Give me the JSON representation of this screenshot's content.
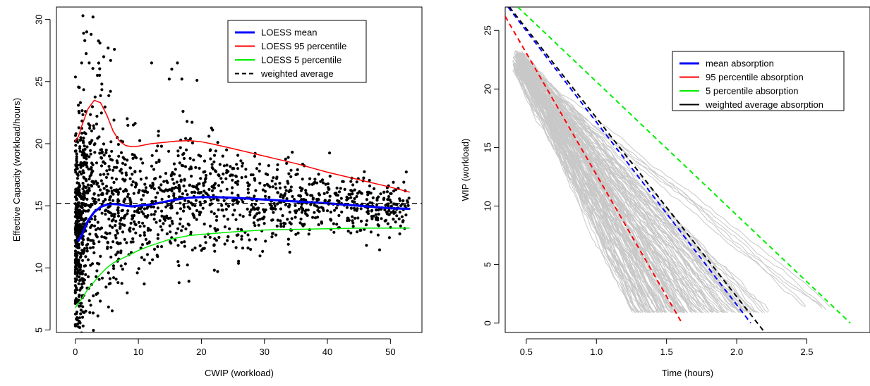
{
  "chart_data": [
    {
      "type": "scatter",
      "xlabel": "CWIP (workload)",
      "ylabel": "Effective Capacity (workload/hours)",
      "xlim": [
        -3,
        55
      ],
      "ylim": [
        4.8,
        31
      ],
      "xticks": [
        0,
        10,
        20,
        30,
        40,
        50
      ],
      "yticks": [
        5,
        10,
        15,
        20,
        25,
        30
      ],
      "grid": false,
      "legend_position": "top-right",
      "series": [
        {
          "name": "LOESS mean",
          "kind": "line",
          "color": "#0000ff",
          "points": [
            [
              0.5,
              12.2
            ],
            [
              1,
              12.6
            ],
            [
              2,
              13.8
            ],
            [
              3,
              14.5
            ],
            [
              4,
              14.9
            ],
            [
              5,
              15.1
            ],
            [
              6,
              15.15
            ],
            [
              7,
              15.1
            ],
            [
              8,
              15.0
            ],
            [
              9,
              14.95
            ],
            [
              10,
              15.0
            ],
            [
              12,
              15.1
            ],
            [
              14,
              15.3
            ],
            [
              16,
              15.5
            ],
            [
              18,
              15.65
            ],
            [
              20,
              15.7
            ],
            [
              22,
              15.7
            ],
            [
              25,
              15.65
            ],
            [
              30,
              15.5
            ],
            [
              35,
              15.35
            ],
            [
              40,
              15.2
            ],
            [
              45,
              15.0
            ],
            [
              50,
              14.8
            ],
            [
              53,
              14.75
            ]
          ]
        },
        {
          "name": "LOESS 95 percentile",
          "kind": "line",
          "color": "#ff0000",
          "points": [
            [
              0,
              20.2
            ],
            [
              0.5,
              20.6
            ],
            [
              1,
              21.4
            ],
            [
              2,
              22.8
            ],
            [
              3,
              23.5
            ],
            [
              4,
              23.3
            ],
            [
              5,
              22.3
            ],
            [
              6,
              21.0
            ],
            [
              7,
              20.2
            ],
            [
              8,
              19.85
            ],
            [
              9,
              19.75
            ],
            [
              10,
              19.8
            ],
            [
              12,
              20.0
            ],
            [
              14,
              20.1
            ],
            [
              16,
              20.2
            ],
            [
              18,
              20.25
            ],
            [
              20,
              20.15
            ],
            [
              22,
              19.95
            ],
            [
              25,
              19.6
            ],
            [
              30,
              19.0
            ],
            [
              35,
              18.4
            ],
            [
              40,
              17.7
            ],
            [
              45,
              17.1
            ],
            [
              50,
              16.5
            ],
            [
              53,
              16.1
            ]
          ]
        },
        {
          "name": "LOESS 5 percentile",
          "kind": "line",
          "color": "#00ee00",
          "points": [
            [
              0,
              6.8
            ],
            [
              1,
              7.5
            ],
            [
              2,
              8.3
            ],
            [
              3,
              8.9
            ],
            [
              4,
              9.5
            ],
            [
              5,
              10.0
            ],
            [
              6,
              10.4
            ],
            [
              8,
              10.9
            ],
            [
              10,
              11.4
            ],
            [
              12,
              11.8
            ],
            [
              15,
              12.3
            ],
            [
              18,
              12.6
            ],
            [
              20,
              12.7
            ],
            [
              25,
              12.9
            ],
            [
              30,
              13.05
            ],
            [
              35,
              13.1
            ],
            [
              40,
              13.15
            ],
            [
              45,
              13.2
            ],
            [
              50,
              13.2
            ],
            [
              53,
              13.2
            ]
          ]
        },
        {
          "name": "weighted average",
          "kind": "hline",
          "color": "#000000",
          "dashed": true,
          "y": 15.2
        }
      ],
      "scatter_points": [
        [
          1.2,
          30.3
        ],
        [
          2.8,
          30.2
        ],
        [
          1.8,
          29.0
        ],
        [
          2.5,
          28.8
        ],
        [
          3.9,
          28.1
        ],
        [
          1.5,
          28.3
        ],
        [
          5.2,
          27.7
        ],
        [
          6.2,
          27.6
        ],
        [
          4.5,
          27.0
        ],
        [
          5.6,
          26.7
        ],
        [
          12.1,
          26.5
        ],
        [
          16.2,
          26.5
        ],
        [
          1.0,
          26.5
        ],
        [
          2.2,
          26.5
        ],
        [
          3.5,
          25.5
        ],
        [
          15.3,
          26.0
        ],
        [
          14.9,
          25.2
        ],
        [
          16.9,
          25.2
        ],
        [
          19.3,
          25.1
        ],
        [
          4.2,
          24.8
        ],
        [
          0.8,
          23.3
        ],
        [
          1.6,
          22.6
        ],
        [
          2.1,
          21.6
        ],
        [
          9.2,
          21.5
        ],
        [
          13.2,
          21.0
        ],
        [
          21.2,
          20.6
        ],
        [
          22.6,
          20.1
        ],
        [
          24.0,
          19.5
        ],
        [
          23.4,
          19.0
        ],
        [
          28.8,
          18.0
        ],
        [
          32.1,
          18.3
        ],
        [
          35.0,
          17.5
        ],
        [
          38.0,
          16.9
        ],
        [
          42.1,
          16.4
        ],
        [
          44.8,
          16.0
        ],
        [
          47.9,
          15.6
        ],
        [
          50.1,
          15.3
        ],
        [
          52.3,
          15.0
        ],
        [
          30.5,
          17.5
        ],
        [
          33.3,
          16.5
        ],
        [
          36.8,
          15.9
        ],
        [
          39.6,
          15.4
        ],
        [
          41.8,
          15.2
        ],
        [
          26.4,
          13.0
        ],
        [
          28.6,
          12.3
        ],
        [
          31.2,
          12.5
        ],
        [
          33.8,
          11.9
        ],
        [
          27.4,
          11.6
        ],
        [
          36.0,
          13.5
        ],
        [
          39.1,
          13.6
        ],
        [
          43.2,
          14.0
        ],
        [
          46.3,
          14.5
        ],
        [
          19.0,
          11.6
        ],
        [
          22.0,
          11.8
        ],
        [
          17.3,
          12.1
        ],
        [
          24.1,
          12.2
        ],
        [
          0.9,
          6.6
        ],
        [
          1.4,
          6.4
        ],
        [
          2.3,
          6.4
        ],
        [
          0.6,
          5.7
        ]
      ],
      "scatter_color": "#000000"
    },
    {
      "type": "line",
      "xlabel": "Time (hours)",
      "ylabel": "WIP (workload)",
      "xlim": [
        0.35,
        2.95
      ],
      "ylim": [
        -0.8,
        27
      ],
      "xticks": [
        0.5,
        1.0,
        1.5,
        2.0,
        2.5
      ],
      "xtick_labels": [
        "0.5",
        "1.0",
        "1.5",
        "2.0",
        "2.5"
      ],
      "yticks": [
        0,
        5,
        10,
        15,
        20,
        25
      ],
      "grid": false,
      "legend_position": "top-right",
      "trajectories_color": "#c8c8c8",
      "series": [
        {
          "name": "mean absorption",
          "color": "#0000ff",
          "dashed": true,
          "points": [
            [
              0.37,
              27.0
            ],
            [
              2.1,
              0.0
            ]
          ]
        },
        {
          "name": "95 percentile absorption",
          "color": "#ff0000",
          "dashed": true,
          "points": [
            [
              0.35,
              26.2
            ],
            [
              1.61,
              0.0
            ]
          ]
        },
        {
          "name": "5 percentile absorption",
          "color": "#00ee00",
          "dashed": true,
          "points": [
            [
              0.44,
              27.0
            ],
            [
              2.81,
              0.0
            ]
          ]
        },
        {
          "name": "weighted average absorption",
          "color": "#000000",
          "dashed": true,
          "points": [
            [
              0.38,
              27.0
            ],
            [
              2.2,
              -0.8
            ]
          ]
        }
      ]
    }
  ]
}
